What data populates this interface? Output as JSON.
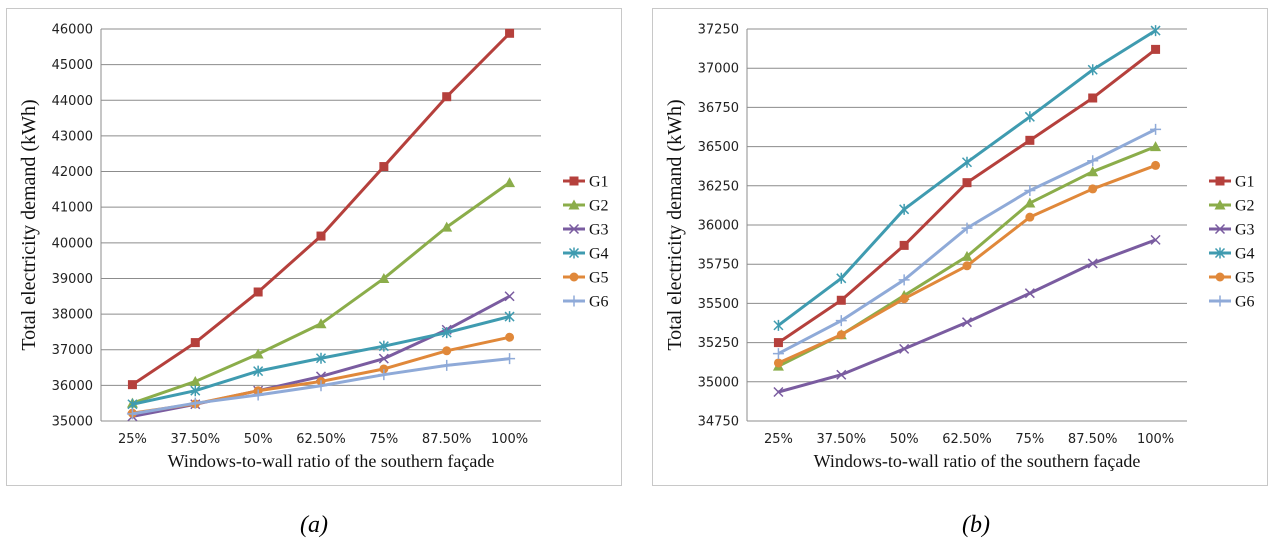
{
  "charts": [
    {
      "caption": "(a)",
      "chart_data": {
        "type": "line",
        "categories": [
          "25%",
          "37.50%",
          "50%",
          "62.50%",
          "75%",
          "87.50%",
          "100%"
        ],
        "xlabel": "Windows-to-wall ratio of the southern façade",
        "ylabel": "Total electricity demand (kWh)",
        "ylim": [
          35000,
          46000
        ],
        "yticks": [
          35000,
          36000,
          37000,
          38000,
          39000,
          40000,
          41000,
          42000,
          43000,
          44000,
          45000,
          46000
        ],
        "grid": true,
        "legend_position": "right",
        "series": [
          {
            "name": "G1",
            "color": "#B5403C",
            "marker": "square",
            "values": [
              36020,
              37200,
              38620,
              40190,
              42140,
              44100,
              45880
            ]
          },
          {
            "name": "G2",
            "color": "#8BAD4A",
            "marker": "triangle",
            "values": [
              35500,
              36110,
              36880,
              37730,
              39000,
              40440,
              41690
            ]
          },
          {
            "name": "G3",
            "color": "#7A5CA0",
            "marker": "x",
            "values": [
              35130,
              35470,
              35850,
              36250,
              36750,
              37560,
              38500
            ]
          },
          {
            "name": "G4",
            "color": "#3F9BB0",
            "marker": "asterisk",
            "values": [
              35470,
              35850,
              36400,
              36760,
              37100,
              37480,
              37930
            ]
          },
          {
            "name": "G5",
            "color": "#E0883A",
            "marker": "circle",
            "values": [
              35220,
              35480,
              35850,
              36110,
              36460,
              36970,
              37350
            ]
          },
          {
            "name": "G6",
            "color": "#8FAAD8",
            "marker": "plus",
            "values": [
              35200,
              35500,
              35730,
              35990,
              36300,
              36560,
              36750
            ]
          }
        ]
      }
    },
    {
      "caption": "(b)",
      "chart_data": {
        "type": "line",
        "categories": [
          "25%",
          "37.50%",
          "50%",
          "62.50%",
          "75%",
          "87.50%",
          "100%"
        ],
        "xlabel": "Windows-to-wall ratio of the southern façade",
        "ylabel": "Total electricity demand (kWh)",
        "ylim": [
          34750,
          37250
        ],
        "yticks": [
          34750,
          35000,
          35250,
          35500,
          35750,
          36000,
          36250,
          36500,
          36750,
          37000,
          37250
        ],
        "grid": true,
        "legend_position": "right",
        "series": [
          {
            "name": "G1",
            "color": "#B5403C",
            "marker": "square",
            "values": [
              35250,
              35520,
              35870,
              36270,
              36540,
              36810,
              37120
            ]
          },
          {
            "name": "G2",
            "color": "#8BAD4A",
            "marker": "triangle",
            "values": [
              35100,
              35300,
              35550,
              35800,
              36140,
              36340,
              36500
            ]
          },
          {
            "name": "G3",
            "color": "#7A5CA0",
            "marker": "x",
            "values": [
              34935,
              35045,
              35210,
              35380,
              35565,
              35755,
              35905
            ]
          },
          {
            "name": "G4",
            "color": "#3F9BB0",
            "marker": "asterisk",
            "values": [
              35360,
              35660,
              36100,
              36400,
              36690,
              36990,
              37240
            ]
          },
          {
            "name": "G5",
            "color": "#E0883A",
            "marker": "circle",
            "values": [
              35120,
              35300,
              35530,
              35740,
              36050,
              36230,
              36380
            ]
          },
          {
            "name": "G6",
            "color": "#8FAAD8",
            "marker": "plus",
            "values": [
              35180,
              35390,
              35650,
              35980,
              36220,
              36410,
              36610
            ]
          }
        ]
      }
    }
  ]
}
